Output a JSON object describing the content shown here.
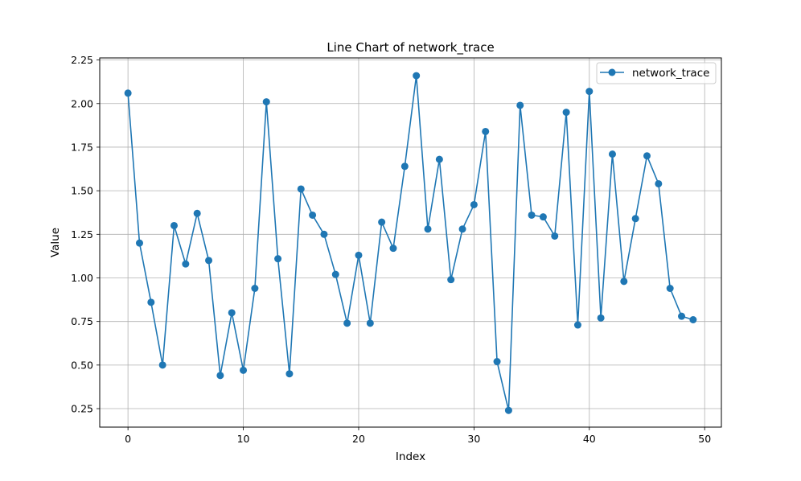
{
  "chart_data": {
    "type": "line",
    "title": "Line Chart of network_trace",
    "xlabel": "Index",
    "ylabel": "Value",
    "xlim": [
      -2.45,
      51.45
    ],
    "ylim": [
      0.144,
      2.262
    ],
    "xticks": [
      0,
      10,
      20,
      30,
      40,
      50
    ],
    "yticks": [
      0.25,
      0.5,
      0.75,
      1.0,
      1.25,
      1.5,
      1.75,
      2.0,
      2.25
    ],
    "grid": true,
    "legend_position": "top-right",
    "line_color": "#1f77b4",
    "series": [
      {
        "name": "network_trace",
        "marker": "circle",
        "x": [
          0,
          1,
          2,
          3,
          4,
          5,
          6,
          7,
          8,
          9,
          10,
          11,
          12,
          13,
          14,
          15,
          16,
          17,
          18,
          19,
          20,
          21,
          22,
          23,
          24,
          25,
          26,
          27,
          28,
          29,
          30,
          31,
          32,
          33,
          34,
          35,
          36,
          37,
          38,
          39,
          40,
          41,
          42,
          43,
          44,
          45,
          46,
          47,
          48,
          49
        ],
        "values": [
          2.06,
          1.2,
          0.86,
          0.5,
          1.3,
          1.08,
          1.37,
          1.1,
          0.44,
          0.8,
          0.47,
          0.94,
          2.01,
          1.11,
          0.45,
          1.51,
          1.36,
          1.25,
          1.02,
          0.74,
          1.13,
          0.74,
          1.32,
          1.17,
          1.64,
          2.16,
          1.28,
          1.68,
          0.99,
          1.28,
          1.42,
          1.84,
          0.52,
          0.24,
          1.99,
          1.36,
          1.35,
          1.24,
          1.95,
          0.73,
          2.07,
          0.77,
          1.71,
          0.98,
          1.34,
          1.7,
          1.54,
          0.94,
          0.78,
          0.76
        ]
      }
    ]
  }
}
